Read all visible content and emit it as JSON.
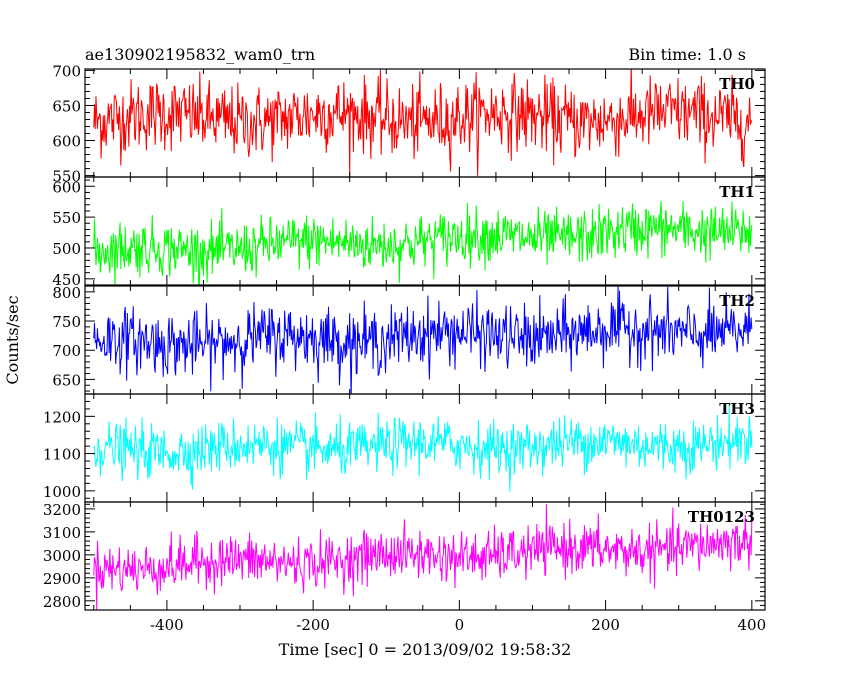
{
  "chart_data": {
    "type": "line",
    "title": "ae130902195832_wam0_trn",
    "bin_time_label": "Bin time: 1.0 s",
    "xlabel": "Time [sec] 0 = 2013/09/02 19:58:32",
    "ylabel": "Counts/sec",
    "xlim": [
      -512,
      418
    ],
    "xticks": [
      -400,
      -200,
      0,
      200,
      400
    ],
    "grid": false,
    "panels": [
      {
        "name": "TH0",
        "color": "#ff0000",
        "ylim": [
          548,
          702
        ],
        "yticks": [
          550,
          600,
          650,
          700
        ],
        "mean_start": 632,
        "mean_end": 634,
        "noise": 26
      },
      {
        "name": "TH1",
        "color": "#00ff00",
        "ylim": [
          440,
          615
        ],
        "yticks": [
          450,
          500,
          550,
          600
        ],
        "mean_start": 493,
        "mean_end": 532,
        "noise": 22
      },
      {
        "name": "TH2",
        "color": "#0000ff",
        "ylim": [
          625,
          810
        ],
        "yticks": [
          650,
          700,
          750,
          800
        ],
        "mean_start": 712,
        "mean_end": 735,
        "noise": 27
      },
      {
        "name": "TH3",
        "color": "#00ffff",
        "ylim": [
          970,
          1260
        ],
        "yticks": [
          1000,
          1100,
          1200
        ],
        "mean_start": 1110,
        "mean_end": 1130,
        "noise": 35
      },
      {
        "name": "TH0123",
        "color": "#ff00ff",
        "ylim": [
          2760,
          3230
        ],
        "yticks": [
          2800,
          2900,
          3000,
          3100,
          3200
        ],
        "mean_start": 2945,
        "mean_end": 3045,
        "noise": 55
      }
    ],
    "x_data_range": [
      -500,
      400
    ]
  }
}
